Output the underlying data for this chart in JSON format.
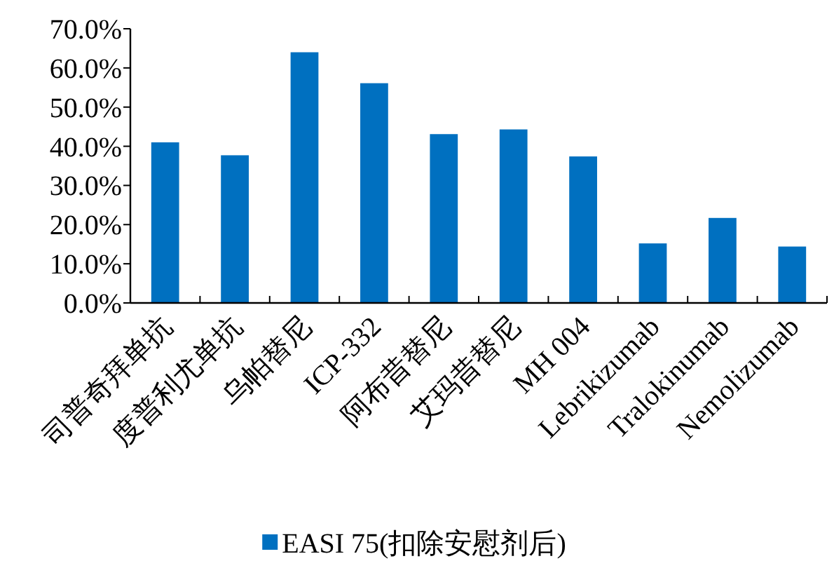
{
  "chart_data": {
    "type": "bar",
    "categories": [
      "司普奇拜单抗",
      "度普利尤单抗",
      "乌帕替尼",
      "ICP-332",
      "阿布昔替尼",
      "艾玛昔替尼",
      "MH 004",
      "Lebrikizumab",
      "Tralokinumab",
      "Nemolizumab"
    ],
    "series": [
      {
        "name": "EASI 75(扣除安慰剂后)",
        "color": "#0070c0",
        "values": [
          41.0,
          37.7,
          64.0,
          56.1,
          43.1,
          44.3,
          37.4,
          15.2,
          21.7,
          14.4
        ]
      }
    ],
    "ylim": [
      0,
      70
    ],
    "yticks": [
      {
        "value": 0,
        "label": "0.0%"
      },
      {
        "value": 10,
        "label": "10.0%"
      },
      {
        "value": 20,
        "label": "20.0%"
      },
      {
        "value": 30,
        "label": "30.0%"
      },
      {
        "value": 40,
        "label": "40.0%"
      },
      {
        "value": 50,
        "label": "50.0%"
      },
      {
        "value": 60,
        "label": "60.0%"
      },
      {
        "value": 70,
        "label": "70.0%"
      }
    ],
    "grid": false,
    "legend": "bottom"
  }
}
